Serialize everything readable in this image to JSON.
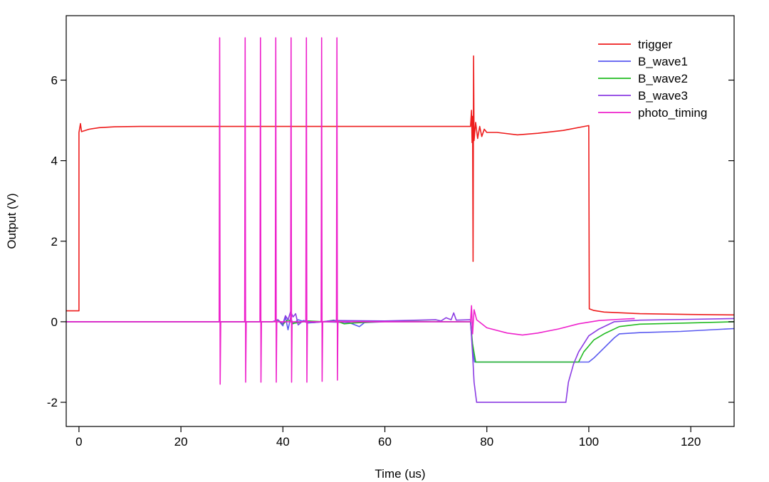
{
  "chart_data": {
    "type": "line",
    "title": "",
    "xlabel": "Time (us)",
    "ylabel": "Output (V)",
    "xlim": [
      -2.5,
      128.5
    ],
    "ylim": [
      -2.6,
      7.6
    ],
    "xticks": [
      0,
      20,
      40,
      60,
      80,
      100,
      120
    ],
    "xtick_labels": [
      "0",
      "20",
      "40",
      "60",
      "80",
      "100",
      "120"
    ],
    "yticks": [
      -2,
      0,
      2,
      4,
      6
    ],
    "ytick_labels": [
      "-2",
      "0",
      "2",
      "4",
      "6"
    ],
    "grid": false,
    "legend_position": "top-right",
    "series": [
      {
        "name": "trigger",
        "color": "#ee1c1c",
        "points": [
          [
            -2.5,
            0.27
          ],
          [
            0,
            0.27
          ],
          [
            0,
            4.7
          ],
          [
            0.3,
            4.92
          ],
          [
            0.5,
            4.72
          ],
          [
            2,
            4.78
          ],
          [
            4,
            4.82
          ],
          [
            7,
            4.84
          ],
          [
            12,
            4.85
          ],
          [
            76.8,
            4.85
          ],
          [
            77,
            5.25
          ],
          [
            77.1,
            4.45
          ],
          [
            77.2,
            5.1
          ],
          [
            77.3,
            1.5
          ],
          [
            77.4,
            6.6
          ],
          [
            77.5,
            4.5
          ],
          [
            77.8,
            4.95
          ],
          [
            78.2,
            4.55
          ],
          [
            78.6,
            4.85
          ],
          [
            79,
            4.6
          ],
          [
            79.5,
            4.78
          ],
          [
            80,
            4.7
          ],
          [
            82,
            4.7
          ],
          [
            86,
            4.64
          ],
          [
            90,
            4.68
          ],
          [
            95,
            4.75
          ],
          [
            100,
            4.87
          ],
          [
            100.1,
            0.32
          ],
          [
            101,
            0.28
          ],
          [
            103,
            0.24
          ],
          [
            110,
            0.2
          ],
          [
            120,
            0.18
          ],
          [
            128.5,
            0.17
          ]
        ]
      },
      {
        "name": "B_wave1",
        "color": "#5a5af0",
        "points": [
          [
            -2.5,
            0
          ],
          [
            38,
            0
          ],
          [
            39,
            0.05
          ],
          [
            40,
            -0.1
          ],
          [
            40.5,
            0.12
          ],
          [
            41,
            -0.2
          ],
          [
            41.5,
            0.1
          ],
          [
            42,
            -0.05
          ],
          [
            43,
            0.05
          ],
          [
            45,
            -0.03
          ],
          [
            48,
            0
          ],
          [
            53,
            -0.02
          ],
          [
            55,
            -0.12
          ],
          [
            56,
            -0.02
          ],
          [
            60,
            0
          ],
          [
            76.8,
            0
          ],
          [
            77.2,
            -0.7
          ],
          [
            77.6,
            -1.0
          ],
          [
            99,
            -1.0
          ],
          [
            100,
            -1.0
          ],
          [
            101,
            -0.9
          ],
          [
            103,
            -0.65
          ],
          [
            105,
            -0.4
          ],
          [
            106,
            -0.3
          ],
          [
            110,
            -0.27
          ],
          [
            118,
            -0.24
          ],
          [
            128.5,
            -0.17
          ]
        ]
      },
      {
        "name": "B_wave2",
        "color": "#22bb22",
        "points": [
          [
            -2.5,
            0
          ],
          [
            38,
            0
          ],
          [
            39,
            0.04
          ],
          [
            40,
            -0.06
          ],
          [
            41,
            0.05
          ],
          [
            42,
            -0.04
          ],
          [
            45,
            0.02
          ],
          [
            48,
            0
          ],
          [
            50,
            0.04
          ],
          [
            52,
            -0.05
          ],
          [
            54,
            -0.03
          ],
          [
            60,
            0.01
          ],
          [
            76.8,
            0
          ],
          [
            77.2,
            -0.55
          ],
          [
            77.8,
            -1.0
          ],
          [
            96,
            -1.0
          ],
          [
            98,
            -1.0
          ],
          [
            99,
            -0.75
          ],
          [
            101,
            -0.45
          ],
          [
            103,
            -0.3
          ],
          [
            106,
            -0.12
          ],
          [
            110,
            -0.06
          ],
          [
            120,
            -0.03
          ],
          [
            128.5,
            0.0
          ]
        ]
      },
      {
        "name": "B_wave3",
        "color": "#8b3ce3",
        "points": [
          [
            -2.5,
            0
          ],
          [
            38,
            0
          ],
          [
            39,
            0.05
          ],
          [
            40,
            -0.05
          ],
          [
            40.5,
            0.15
          ],
          [
            41,
            0.05
          ],
          [
            41.5,
            0.25
          ],
          [
            42,
            0.12
          ],
          [
            42.5,
            0.2
          ],
          [
            43,
            -0.08
          ],
          [
            44,
            0.03
          ],
          [
            46,
            -0.02
          ],
          [
            50,
            0.03
          ],
          [
            60,
            0.02
          ],
          [
            70,
            0.05
          ],
          [
            71,
            0.02
          ],
          [
            72,
            0.1
          ],
          [
            73,
            0.05
          ],
          [
            73.5,
            0.22
          ],
          [
            74,
            0.04
          ],
          [
            76.8,
            0.05
          ],
          [
            77.2,
            -0.8
          ],
          [
            77.5,
            -1.5
          ],
          [
            78,
            -2.0
          ],
          [
            95.5,
            -2.0
          ],
          [
            96,
            -1.5
          ],
          [
            97,
            -1.05
          ],
          [
            98,
            -0.75
          ],
          [
            100,
            -0.35
          ],
          [
            102,
            -0.18
          ],
          [
            105,
            0.0
          ],
          [
            110,
            0.04
          ],
          [
            120,
            0.06
          ],
          [
            128.5,
            0.08
          ]
        ]
      },
      {
        "name": "photo_timing",
        "color": "#ee22cc",
        "points": [
          [
            -2.5,
            0
          ],
          [
            27.5,
            0
          ],
          [
            27.6,
            7.05
          ],
          [
            27.7,
            -1.55
          ],
          [
            27.8,
            0
          ],
          [
            32.5,
            0
          ],
          [
            32.6,
            7.05
          ],
          [
            32.7,
            -1.5
          ],
          [
            32.8,
            0
          ],
          [
            35.5,
            0
          ],
          [
            35.6,
            7.05
          ],
          [
            35.7,
            -1.5
          ],
          [
            35.8,
            0
          ],
          [
            38.5,
            0
          ],
          [
            38.6,
            7.05
          ],
          [
            38.7,
            -1.5
          ],
          [
            38.8,
            0
          ],
          [
            41.5,
            0
          ],
          [
            41.6,
            7.05
          ],
          [
            41.7,
            -1.5
          ],
          [
            41.8,
            0
          ],
          [
            44.5,
            0
          ],
          [
            44.6,
            7.05
          ],
          [
            44.7,
            -1.5
          ],
          [
            44.8,
            0
          ],
          [
            47.5,
            0
          ],
          [
            47.6,
            7.05
          ],
          [
            47.7,
            -1.48
          ],
          [
            47.8,
            0
          ],
          [
            50.5,
            0
          ],
          [
            50.6,
            7.05
          ],
          [
            50.7,
            -1.45
          ],
          [
            50.8,
            0
          ],
          [
            76.8,
            0
          ],
          [
            77,
            0.4
          ],
          [
            77.2,
            -0.3
          ],
          [
            77.5,
            0.3
          ],
          [
            78,
            0.05
          ],
          [
            80,
            -0.15
          ],
          [
            84,
            -0.28
          ],
          [
            87,
            -0.33
          ],
          [
            90,
            -0.28
          ],
          [
            94,
            -0.18
          ],
          [
            98,
            -0.05
          ],
          [
            102,
            0.03
          ],
          [
            106,
            0.06
          ],
          [
            109,
            0.08
          ]
        ]
      }
    ]
  }
}
